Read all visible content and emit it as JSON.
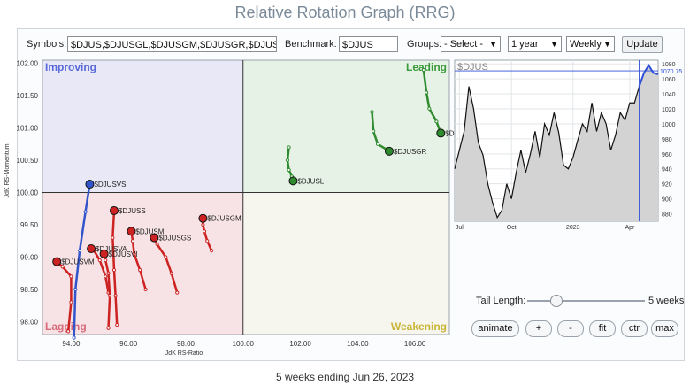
{
  "title": "Relative Rotation Graph (RRG)",
  "toolbar": {
    "symbols_label": "Symbols:",
    "symbols_value": "$DJUS,$DJUSGL,$DJUSGM,$DJUSGR,$DJUSGS",
    "benchmark_label": "Benchmark:",
    "benchmark_value": "$DJUS",
    "groups_label": "Groups:",
    "groups_value": "- Select -",
    "period_value": "1 year",
    "frequency_value": "Weekly",
    "update_label": "Update"
  },
  "controls": {
    "tail_length_label": "Tail Length:",
    "tail_length_value": "5 weeks",
    "tail_length_fraction": 0.25,
    "buttons": [
      "animate",
      "+",
      "-",
      "fit",
      "ctr",
      "max"
    ]
  },
  "footer": "5 weeks ending Jun 26, 2023",
  "colors": {
    "improving": "#e8e8f7",
    "leading": "#e6f2e6",
    "lagging": "#f7e3e6",
    "weakening": "#f6f5ee",
    "improving_text": "#5a6ad8",
    "leading_text": "#3a9a3a",
    "lagging_text": "#d66a7a",
    "weakening_text": "#c9b535"
  },
  "chart_data": [
    {
      "type": "scatter",
      "xlabel": "JdK RS-Ratio",
      "ylabel": "JdK RS-Momentum",
      "xlim": [
        93.0,
        107.2
      ],
      "ylim": [
        97.8,
        102.05
      ],
      "x_ticks": [
        "94.00",
        "96.00",
        "98.00",
        "100.00",
        "102.00",
        "104.00",
        "106.00"
      ],
      "y_ticks": [
        "98.00",
        "98.50",
        "99.00",
        "99.50",
        "100.00",
        "100.50",
        "101.00",
        "101.50",
        "102.00"
      ],
      "quadrants": {
        "top_left": "Improving",
        "top_right": "Leading",
        "bottom_left": "Lagging",
        "bottom_right": "Weakening"
      },
      "series": [
        {
          "name": "$DJUSGL",
          "color": "#2e8b2e",
          "points": [
            [
              106.3,
              101.9
            ],
            [
              106.4,
              101.55
            ],
            [
              106.5,
              101.3
            ],
            [
              106.75,
              101.1
            ],
            [
              106.9,
              100.92
            ]
          ]
        },
        {
          "name": "$DJUSGR",
          "color": "#2e8b2e",
          "points": [
            [
              104.5,
              101.25
            ],
            [
              104.55,
              100.95
            ],
            [
              104.7,
              100.75
            ],
            [
              105.0,
              100.67
            ],
            [
              105.1,
              100.64
            ]
          ]
        },
        {
          "name": "$DJUSL",
          "color": "#2e8b2e",
          "points": [
            [
              101.6,
              100.7
            ],
            [
              101.55,
              100.5
            ],
            [
              101.6,
              100.35
            ],
            [
              101.7,
              100.25
            ],
            [
              101.75,
              100.18
            ]
          ]
        },
        {
          "name": "$DJUSVS",
          "color": "#3355cc",
          "points": [
            [
              94.1,
              97.75
            ],
            [
              94.15,
              98.5
            ],
            [
              94.3,
              99.1
            ],
            [
              94.5,
              99.7
            ],
            [
              94.65,
              100.13
            ]
          ]
        },
        {
          "name": "$DJUSGM",
          "color": "#cc2222",
          "points": [
            [
              98.9,
              99.1
            ],
            [
              98.75,
              99.25
            ],
            [
              98.65,
              99.4
            ],
            [
              98.6,
              99.5
            ],
            [
              98.6,
              99.6
            ]
          ]
        },
        {
          "name": "$DJUSS",
          "color": "#cc2222",
          "points": [
            [
              95.6,
              97.95
            ],
            [
              95.55,
              98.4
            ],
            [
              95.5,
              98.8
            ],
            [
              95.45,
              99.3
            ],
            [
              95.5,
              99.72
            ]
          ]
        },
        {
          "name": "$DJUSM",
          "color": "#cc2222",
          "points": [
            [
              96.6,
              98.5
            ],
            [
              96.4,
              98.8
            ],
            [
              96.2,
              99.05
            ],
            [
              96.15,
              99.25
            ],
            [
              96.1,
              99.4
            ]
          ]
        },
        {
          "name": "$DJUSGS",
          "color": "#cc2222",
          "points": [
            [
              97.7,
              98.45
            ],
            [
              97.5,
              98.75
            ],
            [
              97.3,
              99.0
            ],
            [
              97.0,
              99.2
            ],
            [
              96.9,
              99.3
            ]
          ]
        },
        {
          "name": "$DJUSVA",
          "color": "#cc2222",
          "points": [
            [
              95.3,
              98.45
            ],
            [
              95.2,
              98.7
            ],
            [
              95.0,
              98.95
            ],
            [
              94.8,
              99.1
            ],
            [
              94.7,
              99.13
            ]
          ]
        },
        {
          "name": "$DJUSVI",
          "color": "#cc2222",
          "points": [
            [
              95.3,
              97.9
            ],
            [
              95.35,
              98.4
            ],
            [
              95.3,
              98.75
            ],
            [
              95.2,
              98.95
            ],
            [
              95.15,
              99.05
            ]
          ]
        },
        {
          "name": "$DJUSVM",
          "color": "#cc2222",
          "points": [
            [
              93.9,
              97.85
            ],
            [
              94.0,
              98.3
            ],
            [
              94.0,
              98.7
            ],
            [
              93.7,
              98.85
            ],
            [
              93.5,
              98.93
            ]
          ]
        }
      ]
    },
    {
      "type": "area",
      "title": "$DJUS",
      "x_ticks": [
        "Jul",
        "Oct",
        "2023",
        "Apr"
      ],
      "y_ticks": [
        880,
        900,
        920,
        940,
        960,
        980,
        1000,
        1020,
        1040,
        1060,
        1080
      ],
      "ylim": [
        870,
        1085
      ],
      "last_value": "1070.75",
      "values": [
        940,
        965,
        990,
        1050,
        1020,
        975,
        958,
        920,
        895,
        875,
        885,
        920,
        900,
        935,
        965,
        935,
        960,
        990,
        955,
        1000,
        985,
        1015,
        988,
        945,
        940,
        955,
        978,
        1000,
        990,
        1028,
        990,
        1015,
        1000,
        965,
        985,
        1015,
        1005,
        1028,
        1028,
        1050,
        1068,
        1078,
        1068,
        1066
      ]
    }
  ]
}
